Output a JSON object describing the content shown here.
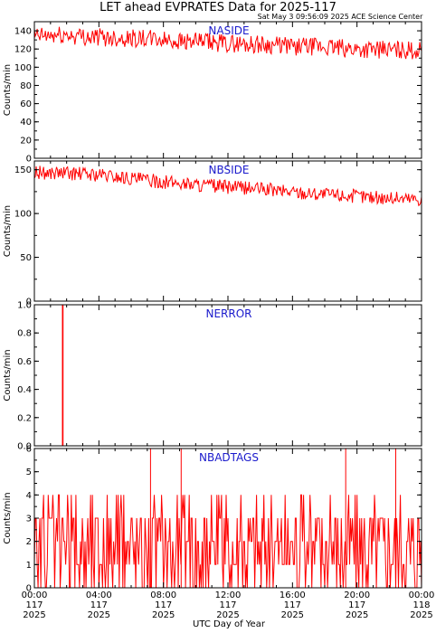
{
  "title": "LET ahead EVPRATES Data for 2025-117",
  "subtitle": "Sat May  3 09:56:09 2025 ACE Science Center",
  "chart_data": [
    {
      "type": "line",
      "title": "NASIDE",
      "ylabel": "Counts/min",
      "ylim": [
        0,
        150
      ],
      "yticks": [
        0,
        20,
        40,
        60,
        80,
        100,
        120,
        140
      ],
      "xlim": [
        0,
        24
      ],
      "series": [
        {
          "x": [
            0,
            2,
            4,
            6,
            8,
            10,
            12,
            14,
            16,
            18,
            20,
            22,
            24
          ],
          "values": [
            134,
            135,
            133,
            132,
            130,
            128,
            126,
            125,
            123,
            122,
            120,
            119,
            118
          ],
          "noise": 10,
          "color": "#ff0000"
        }
      ]
    },
    {
      "type": "line",
      "title": "NBSIDE",
      "ylabel": "Counts/min",
      "ylim": [
        0,
        160
      ],
      "yticks": [
        0,
        50,
        100,
        150
      ],
      "xlim": [
        0,
        24
      ],
      "series": [
        {
          "x": [
            0,
            2,
            4,
            6,
            8,
            10,
            12,
            14,
            16,
            18,
            20,
            22,
            24
          ],
          "values": [
            147,
            146,
            144,
            140,
            136,
            133,
            130,
            128,
            125,
            122,
            120,
            118,
            117
          ],
          "noise": 8,
          "color": "#ff0000"
        }
      ]
    },
    {
      "type": "line",
      "title": "NERROR",
      "ylabel": "Counts/min",
      "ylim": [
        0,
        1
      ],
      "yticks": [
        0.0,
        0.2,
        0.4,
        0.6,
        0.8,
        1.0
      ],
      "ytick_labels": [
        "0.0",
        "0.2",
        "0.4",
        "0.6",
        "0.8",
        "1.0"
      ],
      "xlim": [
        0,
        24
      ],
      "series": [
        {
          "x": [
            0,
            1.74,
            1.74,
            1.78,
            1.78,
            24
          ],
          "values": [
            0,
            0,
            1,
            1,
            0,
            0
          ],
          "color": "#ff0000"
        }
      ]
    },
    {
      "type": "line",
      "title": "NBADTAGS",
      "ylabel": "Counts/min",
      "ylim": [
        0,
        6
      ],
      "yticks": [
        0,
        1,
        2,
        3,
        4,
        5,
        6
      ],
      "xlim": [
        0,
        24
      ],
      "series": [
        {
          "mean": 1.8,
          "noise": 1.5,
          "spikes_x": [
            7.2,
            9.1,
            19.3,
            22.4
          ],
          "spikes_y": [
            6,
            6,
            6,
            6
          ],
          "color": "#ff0000"
        }
      ]
    }
  ],
  "x_axis": {
    "label": "UTC Day of Year",
    "ticks": [
      {
        "x": 0,
        "time": "00:00",
        "doy": "117",
        "year": "2025"
      },
      {
        "x": 4,
        "time": "04:00",
        "doy": "117",
        "year": "2025"
      },
      {
        "x": 8,
        "time": "08:00",
        "doy": "117",
        "year": "2025"
      },
      {
        "x": 12,
        "time": "12:00",
        "doy": "117",
        "year": "2025"
      },
      {
        "x": 16,
        "time": "16:00",
        "doy": "117",
        "year": "2025"
      },
      {
        "x": 20,
        "time": "20:00",
        "doy": "117",
        "year": "2025"
      },
      {
        "x": 24,
        "time": "00:00",
        "doy": "118",
        "year": "2025"
      }
    ]
  }
}
